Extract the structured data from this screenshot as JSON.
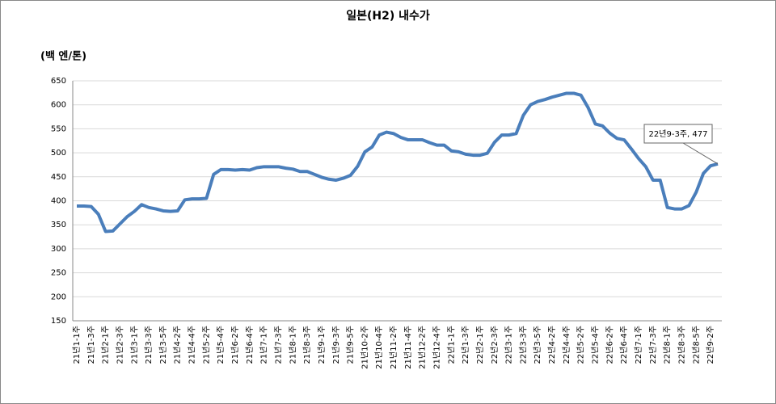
{
  "chart_data": {
    "type": "line",
    "title": "일본(H2) 내수가",
    "y_label": "(백 엔/톤)",
    "annotation": "22년9-3주, 477",
    "categories": [
      "21년1-1주",
      null,
      "21년1-3주",
      null,
      "21년2-1주",
      null,
      "21년2-3주",
      null,
      "21년3-1주",
      null,
      "21년3-3주",
      null,
      "21년3-5주",
      null,
      "21년4-2주",
      null,
      "21년4-4주",
      null,
      "21년5-2주",
      null,
      "21년5-4주",
      null,
      "21년6-2주",
      null,
      "21년6-4주",
      null,
      "21년7-1주",
      null,
      "21년7-3주",
      null,
      "21년8-1주",
      null,
      "21년8-3주",
      null,
      "21년9-1주",
      null,
      "21년9-3주",
      null,
      "21년9-5주",
      null,
      "21년10-2주",
      null,
      "21년10-4주",
      null,
      "21년11-2주",
      null,
      "21년11-4주",
      null,
      "21년12-2주",
      null,
      "21년12-4주",
      null,
      "22년1-1주",
      null,
      "22년1-3주",
      null,
      "22년2-1주",
      null,
      "22년2-3주",
      null,
      "22년3-1주",
      null,
      "22년3-3주",
      null,
      "22년3-5주",
      null,
      "22년4-2주",
      null,
      "22년4-4주",
      null,
      "22년5-2주",
      null,
      "22년5-4주",
      null,
      "22년6-2주",
      null,
      "22년6-4주",
      null,
      "22년7-1주",
      null,
      "22년7-3주",
      null,
      "22년8-1주",
      null,
      "22년8-3주",
      null,
      "22년8-5주",
      null,
      "22년9-2주",
      null
    ],
    "series": [
      {
        "name": "일본(H2) 내수가",
        "color": "#4a7ebb",
        "values": [
          389,
          389,
          388,
          372,
          336,
          337,
          352,
          367,
          378,
          392,
          386,
          383,
          379,
          378,
          379,
          402,
          404,
          404,
          405,
          455,
          465,
          465,
          464,
          465,
          464,
          469,
          471,
          471,
          471,
          468,
          466,
          461,
          461,
          455,
          449,
          445,
          443,
          447,
          453,
          472,
          502,
          512,
          537,
          543,
          540,
          532,
          527,
          527,
          527,
          521,
          516,
          516,
          504,
          502,
          497,
          495,
          495,
          499,
          522,
          537,
          537,
          540,
          578,
          600,
          607,
          611,
          616,
          620,
          624,
          624,
          620,
          594,
          560,
          556,
          541,
          530,
          527,
          508,
          488,
          471,
          443,
          443,
          386,
          383,
          383,
          390,
          418,
          457,
          473,
          477
        ]
      }
    ],
    "ylim": [
      150,
      650
    ],
    "yticks": [
      150,
      200,
      250,
      300,
      350,
      400,
      450,
      500,
      550,
      600,
      650
    ],
    "grid": true
  }
}
